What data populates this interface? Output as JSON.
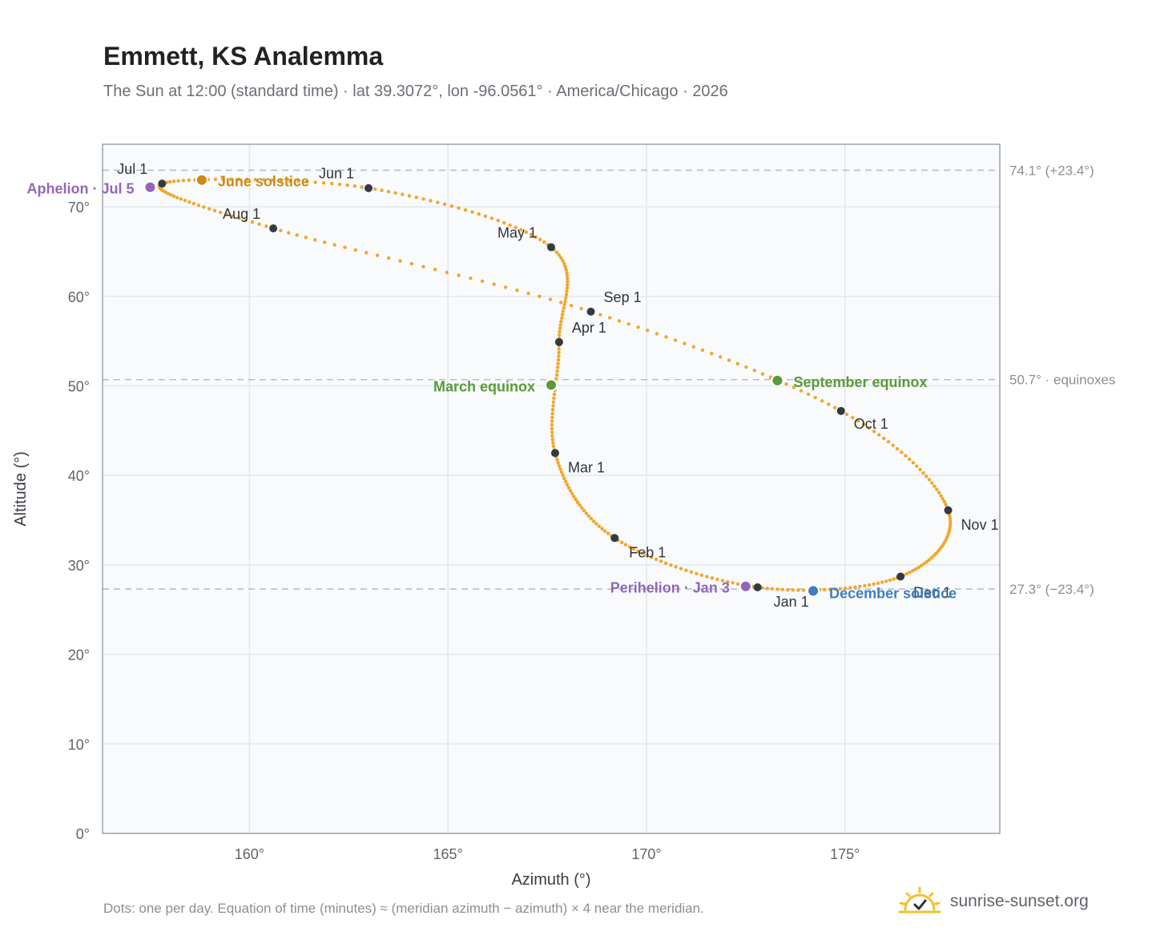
{
  "header": {
    "title": "Emmett, KS Analemma",
    "subtitle": "The Sun at 12:00 (standard time) · lat 39.3072°, lon -96.0561° · America/Chicago · 2026"
  },
  "footer": {
    "note": "Dots: one per day. Equation of time (minutes) ≈ (meridian azimuth − azimuth) × 4 near the meridian.",
    "brand": "sunrise-sunset.org"
  },
  "colors": {
    "curve": "#f2a62b",
    "month_dot": "#343a44",
    "solstice_june": "#cc8a14",
    "solstice_december": "#3f7ec1",
    "equinox": "#5a9a38",
    "apsis": "#9266b8",
    "grid": "#e3e7ec",
    "plot_bg": "#f8fafc",
    "frame": "#9aa3ae",
    "ref_line": "#b8bec6"
  },
  "chart_data": {
    "type": "scatter",
    "title": "Emmett, KS Analemma",
    "xlabel": "Azimuth (°)",
    "ylabel": "Altitude (°)",
    "xlim": [
      156.3,
      178.9
    ],
    "ylim": [
      0,
      77
    ],
    "grid": true,
    "x_ticks": [
      160,
      165,
      170,
      175
    ],
    "x_tick_labels": [
      "160°",
      "165°",
      "170°",
      "175°"
    ],
    "y_ticks": [
      0,
      10,
      20,
      30,
      40,
      50,
      60,
      70
    ],
    "y_tick_labels": [
      "0°",
      "10°",
      "20°",
      "30°",
      "40°",
      "50°",
      "60°",
      "70°"
    ],
    "reference_lines": [
      {
        "y": 74.1,
        "label": "74.1° (+23.4°)"
      },
      {
        "y": 50.7,
        "label": "50.7° · equinoxes"
      },
      {
        "y": 27.3,
        "label": "27.3° (−23.4°)"
      }
    ],
    "monthly_points": [
      {
        "label": "Jan 1",
        "azimuth": 172.8,
        "altitude": 27.5
      },
      {
        "label": "Feb 1",
        "azimuth": 169.2,
        "altitude": 33.0
      },
      {
        "label": "Mar 1",
        "azimuth": 167.7,
        "altitude": 42.5
      },
      {
        "label": "Apr 1",
        "azimuth": 167.8,
        "altitude": 54.9
      },
      {
        "label": "May 1",
        "azimuth": 167.6,
        "altitude": 65.5
      },
      {
        "label": "Jun 1",
        "azimuth": 163.0,
        "altitude": 72.1
      },
      {
        "label": "Jul 1",
        "azimuth": 157.8,
        "altitude": 72.6
      },
      {
        "label": "Aug 1",
        "azimuth": 160.6,
        "altitude": 67.6
      },
      {
        "label": "Sep 1",
        "azimuth": 168.6,
        "altitude": 58.3
      },
      {
        "label": "Oct 1",
        "azimuth": 174.9,
        "altitude": 47.2
      },
      {
        "label": "Nov 1",
        "azimuth": 177.6,
        "altitude": 36.1
      },
      {
        "label": "Dec 1",
        "azimuth": 176.4,
        "altitude": 28.7
      }
    ],
    "events": [
      {
        "label": "June solstice",
        "azimuth": 158.8,
        "altitude": 73.0,
        "kind": "solstice_june"
      },
      {
        "label": "December solstice",
        "azimuth": 174.2,
        "altitude": 27.1,
        "kind": "solstice_december"
      },
      {
        "label": "March equinox",
        "azimuth": 167.6,
        "altitude": 50.1,
        "kind": "equinox"
      },
      {
        "label": "September equinox",
        "azimuth": 173.3,
        "altitude": 50.6,
        "kind": "equinox"
      },
      {
        "label": "Aphelion · Jul 5",
        "azimuth": 157.5,
        "altitude": 72.2,
        "kind": "apsis"
      },
      {
        "label": "Perihelion · Jan 3",
        "azimuth": 172.5,
        "altitude": 27.6,
        "kind": "apsis"
      }
    ]
  }
}
